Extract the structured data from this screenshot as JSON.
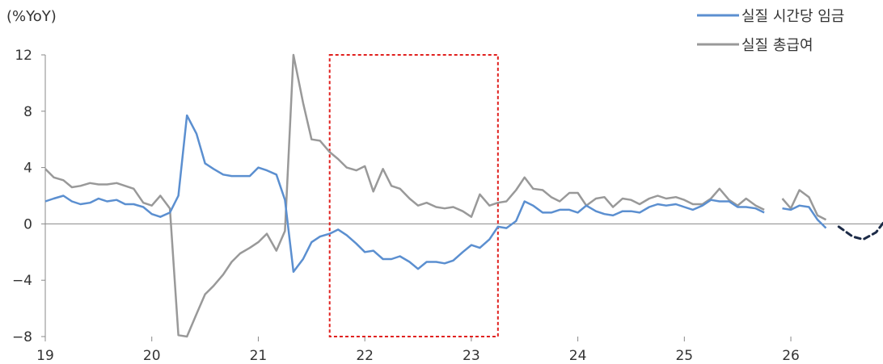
{
  "chart_data": {
    "type": "line",
    "unit_label": "(%YoY)",
    "x_tick_labels": [
      "19",
      "20",
      "21",
      "22",
      "23",
      "24",
      "25",
      "26"
    ],
    "x_range": [
      2019.0,
      2026.85
    ],
    "ylim": [
      -8,
      12
    ],
    "y_ticks": [
      12,
      8,
      4,
      0,
      -4,
      -8
    ],
    "y_tick_labels": [
      "12",
      "8",
      "4",
      "0",
      "−4",
      "−8"
    ],
    "legend_placement": "top-right",
    "highlight_box": {
      "x_range": [
        2021.67,
        2023.25
      ],
      "y_range": [
        -8,
        12
      ],
      "color": "#e0201e"
    },
    "series": [
      {
        "name": "실질 시간당 임금",
        "color": "#5b8fd0",
        "segments": [
          [
            [
              2019.0,
              1.6
            ],
            [
              2019.08,
              1.8
            ],
            [
              2019.17,
              2.0
            ],
            [
              2019.25,
              1.6
            ],
            [
              2019.33,
              1.4
            ],
            [
              2019.42,
              1.5
            ],
            [
              2019.5,
              1.8
            ],
            [
              2019.58,
              1.6
            ],
            [
              2019.67,
              1.7
            ],
            [
              2019.75,
              1.4
            ],
            [
              2019.83,
              1.4
            ],
            [
              2019.92,
              1.2
            ],
            [
              2020.0,
              0.7
            ],
            [
              2020.08,
              0.5
            ],
            [
              2020.17,
              0.8
            ],
            [
              2020.25,
              2.0
            ],
            [
              2020.33,
              7.7
            ],
            [
              2020.42,
              6.4
            ],
            [
              2020.5,
              4.3
            ],
            [
              2020.58,
              3.9
            ],
            [
              2020.67,
              3.5
            ],
            [
              2020.75,
              3.4
            ],
            [
              2020.83,
              3.4
            ],
            [
              2020.92,
              3.4
            ],
            [
              2021.0,
              4.0
            ],
            [
              2021.08,
              3.8
            ],
            [
              2021.17,
              3.5
            ],
            [
              2021.25,
              1.7
            ],
            [
              2021.33,
              -3.4
            ],
            [
              2021.42,
              -2.5
            ],
            [
              2021.5,
              -1.3
            ],
            [
              2021.58,
              -0.9
            ],
            [
              2021.67,
              -0.7
            ],
            [
              2021.75,
              -0.4
            ],
            [
              2021.83,
              -0.8
            ],
            [
              2021.92,
              -1.4
            ],
            [
              2022.0,
              -2.0
            ],
            [
              2022.08,
              -1.9
            ],
            [
              2022.17,
              -2.5
            ],
            [
              2022.25,
              -2.5
            ],
            [
              2022.33,
              -2.3
            ],
            [
              2022.42,
              -2.7
            ],
            [
              2022.5,
              -3.2
            ],
            [
              2022.58,
              -2.7
            ],
            [
              2022.67,
              -2.7
            ],
            [
              2022.75,
              -2.8
            ],
            [
              2022.83,
              -2.6
            ],
            [
              2022.92,
              -2.0
            ],
            [
              2023.0,
              -1.5
            ],
            [
              2023.08,
              -1.7
            ],
            [
              2023.17,
              -1.1
            ],
            [
              2023.25,
              -0.2
            ],
            [
              2023.33,
              -0.3
            ],
            [
              2023.42,
              0.2
            ],
            [
              2023.5,
              1.6
            ],
            [
              2023.58,
              1.3
            ],
            [
              2023.67,
              0.8
            ],
            [
              2023.75,
              0.8
            ],
            [
              2023.83,
              1.0
            ],
            [
              2023.92,
              1.0
            ],
            [
              2024.0,
              0.8
            ],
            [
              2024.08,
              1.3
            ],
            [
              2024.17,
              0.9
            ],
            [
              2024.25,
              0.7
            ],
            [
              2024.33,
              0.6
            ],
            [
              2024.42,
              0.9
            ],
            [
              2024.5,
              0.9
            ],
            [
              2024.58,
              0.8
            ],
            [
              2024.67,
              1.2
            ],
            [
              2024.75,
              1.4
            ],
            [
              2024.83,
              1.3
            ],
            [
              2024.92,
              1.4
            ],
            [
              2025.0,
              1.2
            ],
            [
              2025.08,
              1.0
            ],
            [
              2025.17,
              1.3
            ],
            [
              2025.25,
              1.7
            ],
            [
              2025.33,
              1.6
            ],
            [
              2025.42,
              1.6
            ],
            [
              2025.5,
              1.2
            ],
            [
              2025.58,
              1.2
            ],
            [
              2025.67,
              1.1
            ],
            [
              2025.75,
              0.8
            ]
          ],
          [
            [
              2025.92,
              1.1
            ],
            [
              2026.0,
              1.0
            ],
            [
              2026.08,
              1.3
            ],
            [
              2026.17,
              1.2
            ],
            [
              2026.25,
              0.3
            ],
            [
              2026.33,
              -0.3
            ]
          ]
        ]
      },
      {
        "name": "실질 총급여",
        "color": "#999999",
        "segments": [
          [
            [
              2019.0,
              3.9
            ],
            [
              2019.08,
              3.3
            ],
            [
              2019.17,
              3.1
            ],
            [
              2019.25,
              2.6
            ],
            [
              2019.33,
              2.7
            ],
            [
              2019.42,
              2.9
            ],
            [
              2019.5,
              2.8
            ],
            [
              2019.58,
              2.8
            ],
            [
              2019.67,
              2.9
            ],
            [
              2019.75,
              2.7
            ],
            [
              2019.83,
              2.5
            ],
            [
              2019.92,
              1.5
            ],
            [
              2020.0,
              1.3
            ],
            [
              2020.08,
              2.0
            ],
            [
              2020.17,
              1.1
            ],
            [
              2020.25,
              -7.9
            ],
            [
              2020.33,
              -8.0
            ],
            [
              2020.42,
              -6.4
            ],
            [
              2020.5,
              -5.0
            ],
            [
              2020.58,
              -4.4
            ],
            [
              2020.67,
              -3.6
            ],
            [
              2020.75,
              -2.7
            ],
            [
              2020.83,
              -2.1
            ],
            [
              2020.92,
              -1.7
            ],
            [
              2021.0,
              -1.3
            ],
            [
              2021.08,
              -0.7
            ],
            [
              2021.17,
              -1.9
            ],
            [
              2021.25,
              -0.5
            ],
            [
              2021.33,
              12.0
            ],
            [
              2021.42,
              8.6
            ],
            [
              2021.5,
              6.0
            ],
            [
              2021.58,
              5.9
            ],
            [
              2021.67,
              5.1
            ],
            [
              2021.75,
              4.6
            ],
            [
              2021.83,
              4.0
            ],
            [
              2021.92,
              3.8
            ],
            [
              2022.0,
              4.1
            ],
            [
              2022.08,
              2.3
            ],
            [
              2022.17,
              3.9
            ],
            [
              2022.25,
              2.7
            ],
            [
              2022.33,
              2.5
            ],
            [
              2022.42,
              1.8
            ],
            [
              2022.5,
              1.3
            ],
            [
              2022.58,
              1.5
            ],
            [
              2022.67,
              1.2
            ],
            [
              2022.75,
              1.1
            ],
            [
              2022.83,
              1.2
            ],
            [
              2022.92,
              0.9
            ],
            [
              2023.0,
              0.5
            ],
            [
              2023.08,
              2.1
            ],
            [
              2023.17,
              1.3
            ],
            [
              2023.25,
              1.5
            ],
            [
              2023.33,
              1.6
            ],
            [
              2023.42,
              2.4
            ],
            [
              2023.5,
              3.3
            ],
            [
              2023.58,
              2.5
            ],
            [
              2023.67,
              2.4
            ],
            [
              2023.75,
              1.9
            ],
            [
              2023.83,
              1.6
            ],
            [
              2023.92,
              2.2
            ],
            [
              2024.0,
              2.2
            ],
            [
              2024.08,
              1.3
            ],
            [
              2024.17,
              1.8
            ],
            [
              2024.25,
              1.9
            ],
            [
              2024.33,
              1.2
            ],
            [
              2024.42,
              1.8
            ],
            [
              2024.5,
              1.7
            ],
            [
              2024.58,
              1.4
            ],
            [
              2024.67,
              1.8
            ],
            [
              2024.75,
              2.0
            ],
            [
              2024.83,
              1.8
            ],
            [
              2024.92,
              1.9
            ],
            [
              2025.0,
              1.7
            ],
            [
              2025.08,
              1.4
            ],
            [
              2025.17,
              1.4
            ],
            [
              2025.25,
              1.8
            ],
            [
              2025.33,
              2.5
            ],
            [
              2025.42,
              1.7
            ],
            [
              2025.5,
              1.3
            ],
            [
              2025.58,
              1.8
            ],
            [
              2025.67,
              1.3
            ],
            [
              2025.75,
              1.0
            ]
          ],
          [
            [
              2025.92,
              1.8
            ],
            [
              2026.0,
              1.1
            ],
            [
              2026.08,
              2.4
            ],
            [
              2026.17,
              1.9
            ],
            [
              2026.25,
              0.6
            ],
            [
              2026.33,
              0.3
            ]
          ]
        ]
      }
    ],
    "forecast_arrow": {
      "style": "dashed",
      "color": "#1c2b47",
      "points": [
        [
          2026.45,
          -0.2
        ],
        [
          2026.58,
          -0.9
        ],
        [
          2026.68,
          -1.1
        ],
        [
          2026.8,
          -0.6
        ],
        [
          2026.92,
          0.6
        ],
        [
          2027.0,
          1.7
        ]
      ]
    }
  }
}
